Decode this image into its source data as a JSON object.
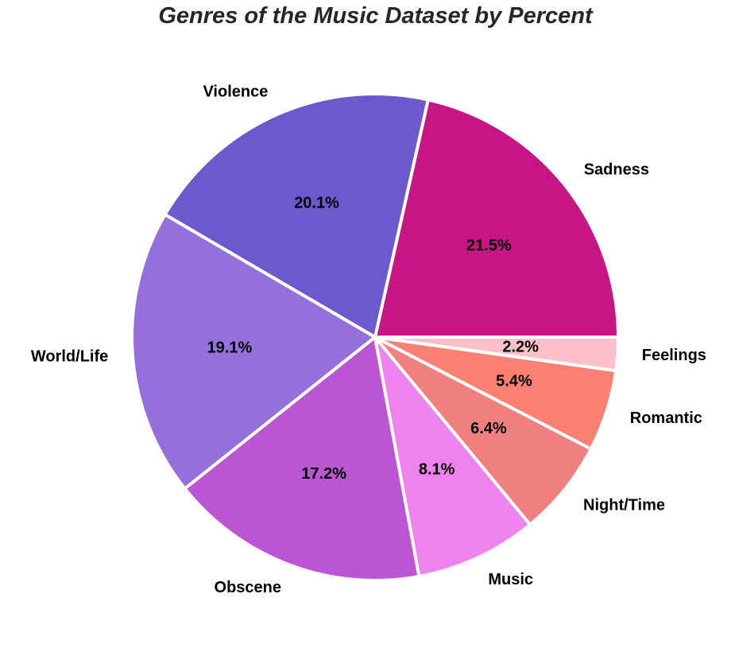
{
  "chart_data": {
    "type": "pie",
    "title": "Genres of the Music Dataset by Percent",
    "start_angle_deg": 0,
    "direction": "counterclockwise",
    "slices": [
      {
        "label": "Sadness",
        "value": 21.5,
        "pct_label": "21.5%",
        "color": "#c71585"
      },
      {
        "label": "Violence",
        "value": 20.1,
        "pct_label": "20.1%",
        "color": "#6a5acd"
      },
      {
        "label": "World/Life",
        "value": 19.1,
        "pct_label": "19.1%",
        "color": "#9370db"
      },
      {
        "label": "Obscene",
        "value": 17.2,
        "pct_label": "17.2%",
        "color": "#ba55d3"
      },
      {
        "label": "Music",
        "value": 8.1,
        "pct_label": "8.1%",
        "color": "#ee82ee"
      },
      {
        "label": "Night/Time",
        "value": 6.4,
        "pct_label": "6.4%",
        "color": "#f08080"
      },
      {
        "label": "Romantic",
        "value": 5.4,
        "pct_label": "5.4%",
        "color": "#fa8072"
      },
      {
        "label": "Feelings",
        "value": 2.2,
        "pct_label": "2.2%",
        "color": "#ffc0cb"
      }
    ]
  }
}
